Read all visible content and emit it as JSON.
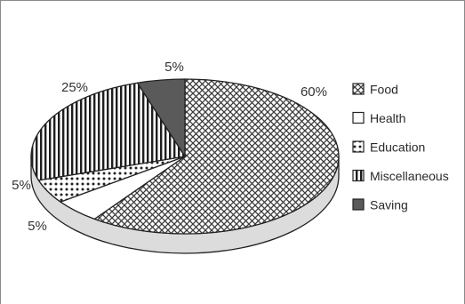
{
  "chart_data": {
    "type": "pie",
    "style": "3d-tilted",
    "slices": [
      {
        "name": "Food",
        "value": 60,
        "label": "60%",
        "pattern": "crosshatch-diamond",
        "color": "#ffffff"
      },
      {
        "name": "Health",
        "value": 5,
        "label": "5%",
        "pattern": "blank",
        "color": "#ffffff"
      },
      {
        "name": "Education",
        "value": 5,
        "label": "5%",
        "pattern": "dots",
        "color": "#ffffff"
      },
      {
        "name": "Miscellaneous",
        "value": 25,
        "label": "25%",
        "pattern": "vertical-stripes",
        "color": "#ffffff"
      },
      {
        "name": "Saving",
        "value": 5,
        "label": "5%",
        "pattern": "solid",
        "color": "#5a5a5a"
      }
    ],
    "legend": {
      "placement": "right",
      "items": [
        "Food",
        "Health",
        "Education",
        "Miscellaneous",
        "Saving"
      ]
    },
    "title": ""
  }
}
